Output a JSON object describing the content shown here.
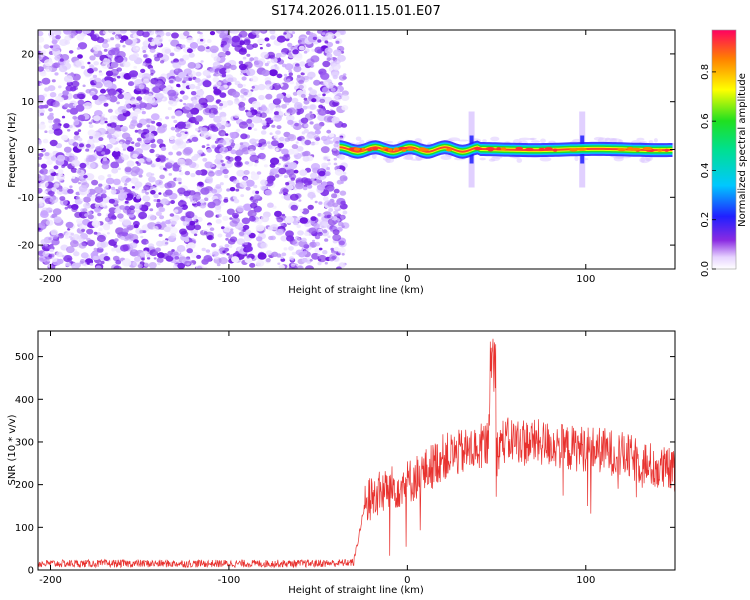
{
  "title": "S174.2026.011.15.01.E07",
  "chart_data": [
    {
      "type": "heatmap",
      "name": "spectrogram",
      "xlabel": "Height of straight line (km)",
      "ylabel": "Frequency (Hz)",
      "xlim": [
        -207,
        150
      ],
      "ylim": [
        -25,
        25
      ],
      "x_ticks": [
        -200,
        -100,
        0,
        100
      ],
      "y_ticks": [
        -20,
        -10,
        0,
        10,
        20
      ],
      "noise_region_x": [
        -207,
        -38
      ],
      "signal_start_x": -38,
      "signal_frequency": 0,
      "colorbar": {
        "label": "Normalized spectral amplitude",
        "range": [
          0,
          0.97
        ],
        "ticks": [
          0.0,
          0.2,
          0.4,
          0.6,
          0.8
        ]
      }
    },
    {
      "type": "line",
      "name": "snr",
      "xlabel": "Height of straight line (km)",
      "ylabel": "SNR (10 * v/v)",
      "xlim": [
        -207,
        150
      ],
      "ylim": [
        0,
        560
      ],
      "x_ticks": [
        -200,
        -100,
        0,
        100
      ],
      "y_ticks": [
        0,
        100,
        200,
        300,
        400,
        500
      ],
      "color": "#e8322f",
      "series": [
        {
          "name": "SNR",
          "x": [
            -207,
            -180,
            -150,
            -120,
            -90,
            -60,
            -40,
            -30,
            -24,
            -20,
            -10,
            0,
            10,
            20,
            30,
            40,
            45,
            48,
            50,
            52,
            60,
            70,
            80,
            90,
            100,
            110,
            120,
            130,
            140,
            150
          ],
          "values": [
            15,
            15,
            15,
            15,
            15,
            15,
            16,
            18,
            150,
            170,
            190,
            205,
            230,
            265,
            275,
            285,
            300,
            520,
            270,
            300,
            305,
            300,
            295,
            285,
            285,
            280,
            270,
            255,
            240,
            230
          ]
        }
      ]
    }
  ]
}
